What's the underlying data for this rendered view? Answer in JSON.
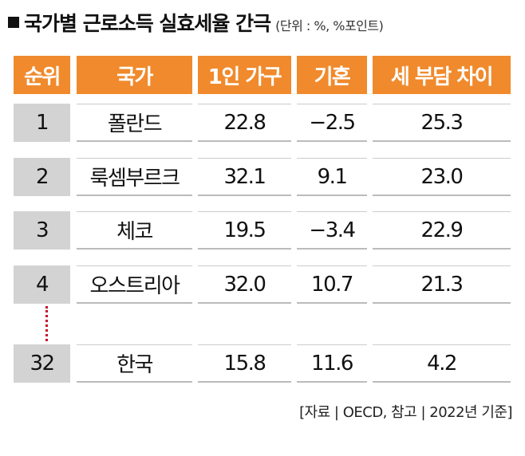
{
  "header": {
    "title": "국가별 근로소득 실효세율 간극",
    "unit": "(단위 : %, %포인트)"
  },
  "table": {
    "columns": [
      "순위",
      "국가",
      "1인 가구",
      "기혼",
      "세 부담 차이"
    ],
    "rows": [
      [
        "1",
        "폴란드",
        "22.8",
        "−2.5",
        "25.3"
      ],
      [
        "2",
        "룩셈부르크",
        "32.1",
        "9.1",
        "23.0"
      ],
      [
        "3",
        "체코",
        "19.5",
        "−3.4",
        "22.9"
      ],
      [
        "4",
        "오스트리아",
        "32.0",
        "10.7",
        "21.3"
      ],
      [
        "32",
        "한국",
        "15.8",
        "11.6",
        "4.2"
      ]
    ]
  },
  "source": "[자료 | OECD, 참고 | 2022년 기준]"
}
